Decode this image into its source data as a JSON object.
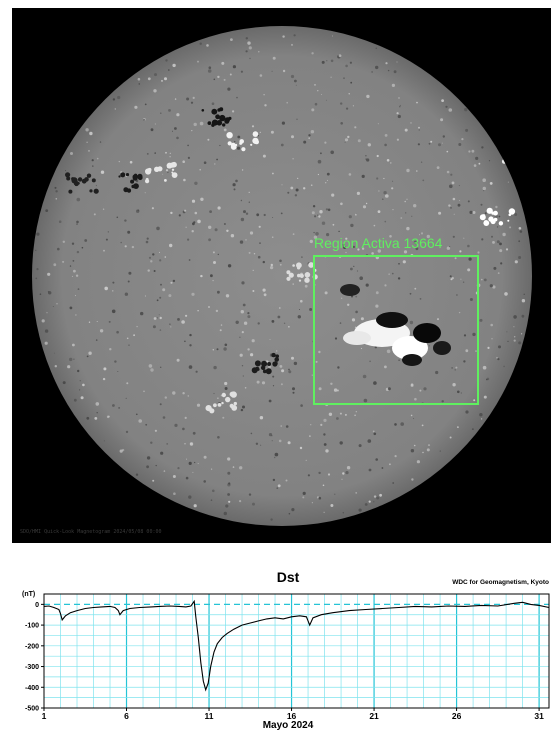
{
  "magnetogram": {
    "region_label": "Region  Activa 13664",
    "footer_caption": "SDO/HMI  Quick-Look  Magnetogram  2024/05/08  00:00",
    "colors": {
      "background": "#000000",
      "disk": "#8a8a8a",
      "highlight_box": "#5ff05f"
    }
  },
  "chart_data": {
    "type": "line",
    "title": "Dst",
    "source_label": "WDC for Geomagnetism, Kyoto",
    "unit_label": "(nT)",
    "xlabel": "Mayo 2024",
    "ylabel": "",
    "xlim": [
      1,
      31.6
    ],
    "ylim": [
      -500,
      50
    ],
    "x_ticks": [
      1,
      6,
      11,
      16,
      21,
      26,
      31
    ],
    "x_tick_labels": [
      "1",
      "6",
      "11",
      "16",
      "21",
      "26",
      "31"
    ],
    "y_ticks": [
      0,
      -100,
      -200,
      -300,
      -400,
      -500
    ],
    "y_tick_labels": [
      "0",
      "-100",
      "-200",
      "-300",
      "-400",
      "-500"
    ],
    "grid": true,
    "colors": {
      "grid": "#7fe3ee",
      "grid_major": "#25c4d6",
      "zero_line": "#25c4d6",
      "series": "#000000"
    },
    "series": [
      {
        "values": [
          [
            1.0,
            -10
          ],
          [
            1.3,
            -8
          ],
          [
            1.6,
            -15
          ],
          [
            1.9,
            -25
          ],
          [
            2.0,
            -45
          ],
          [
            2.1,
            -75
          ],
          [
            2.3,
            -55
          ],
          [
            2.6,
            -40
          ],
          [
            3.0,
            -30
          ],
          [
            3.5,
            -20
          ],
          [
            4.0,
            -15
          ],
          [
            4.5,
            -12
          ],
          [
            5.0,
            -10
          ],
          [
            5.3,
            -15
          ],
          [
            5.5,
            -30
          ],
          [
            5.6,
            -50
          ],
          [
            5.8,
            -30
          ],
          [
            6.2,
            -20
          ],
          [
            6.8,
            -15
          ],
          [
            7.5,
            -12
          ],
          [
            8.0,
            -10
          ],
          [
            8.6,
            -8
          ],
          [
            9.2,
            -10
          ],
          [
            9.6,
            -12
          ],
          [
            9.9,
            -8
          ],
          [
            10.1,
            15
          ],
          [
            10.2,
            -60
          ],
          [
            10.35,
            -160
          ],
          [
            10.5,
            -280
          ],
          [
            10.65,
            -370
          ],
          [
            10.8,
            -412
          ],
          [
            10.95,
            -380
          ],
          [
            11.1,
            -300
          ],
          [
            11.3,
            -230
          ],
          [
            11.5,
            -190
          ],
          [
            11.8,
            -160
          ],
          [
            12.1,
            -140
          ],
          [
            12.5,
            -120
          ],
          [
            13.0,
            -100
          ],
          [
            13.5,
            -90
          ],
          [
            14.0,
            -80
          ],
          [
            14.5,
            -70
          ],
          [
            15.0,
            -65
          ],
          [
            15.5,
            -70
          ],
          [
            16.0,
            -60
          ],
          [
            16.5,
            -55
          ],
          [
            16.9,
            -60
          ],
          [
            17.1,
            -100
          ],
          [
            17.3,
            -65
          ],
          [
            17.8,
            -50
          ],
          [
            18.5,
            -40
          ],
          [
            19.5,
            -30
          ],
          [
            20.5,
            -25
          ],
          [
            21.5,
            -20
          ],
          [
            22.5,
            -15
          ],
          [
            23.5,
            -10
          ],
          [
            24.5,
            -12
          ],
          [
            25.5,
            -8
          ],
          [
            26.5,
            -10
          ],
          [
            27.5,
            -5
          ],
          [
            28.5,
            -8
          ],
          [
            29.5,
            5
          ],
          [
            30.0,
            10
          ],
          [
            30.5,
            0
          ],
          [
            31.0,
            -5
          ],
          [
            31.6,
            -15
          ]
        ]
      }
    ]
  }
}
